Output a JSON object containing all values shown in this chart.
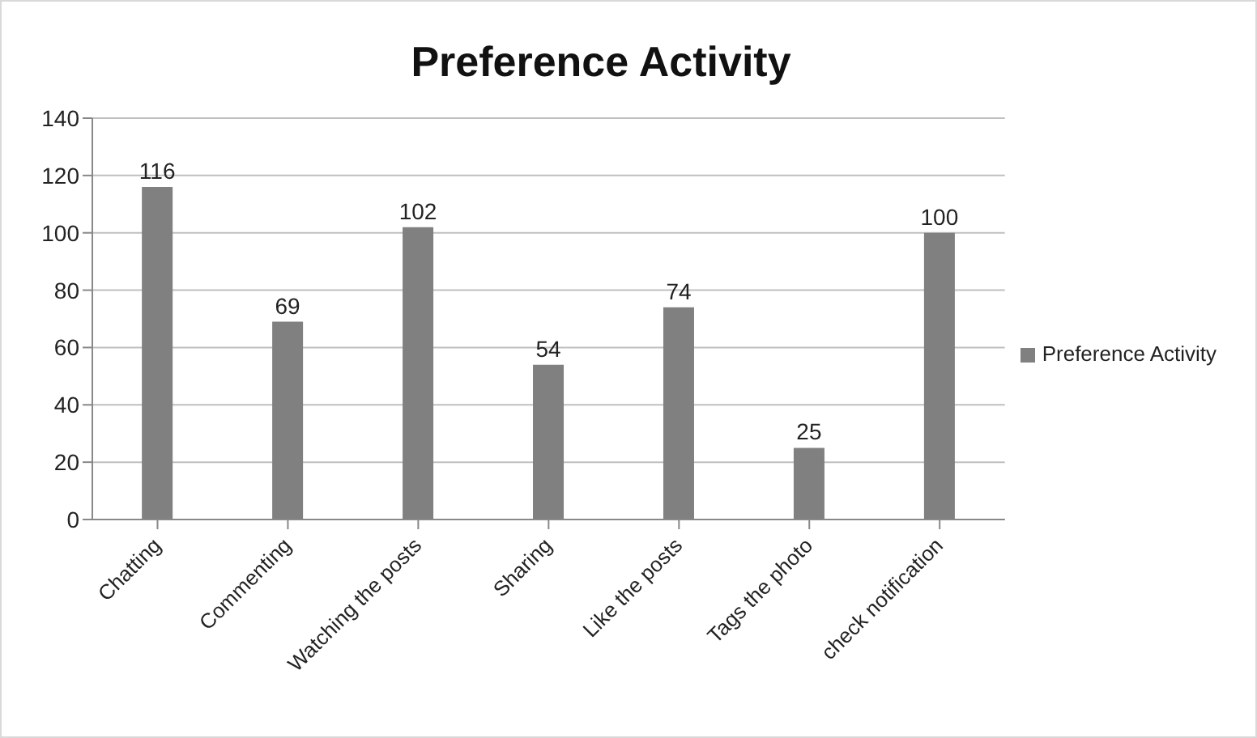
{
  "chart_data": {
    "type": "bar",
    "title": "Preference Activity",
    "categories": [
      "Chatting",
      "Commenting",
      "Watching the posts",
      "Sharing",
      "Like the posts",
      "Tags the photo",
      "check notification"
    ],
    "series": [
      {
        "name": "Preference Activity",
        "color": "#808080",
        "values": [
          116,
          69,
          102,
          54,
          74,
          25,
          100
        ]
      }
    ],
    "ylim": [
      0,
      140
    ],
    "yticks": [
      0,
      20,
      40,
      60,
      80,
      100,
      120,
      140
    ],
    "grid": "y",
    "legend": "right",
    "data_labels": true
  }
}
